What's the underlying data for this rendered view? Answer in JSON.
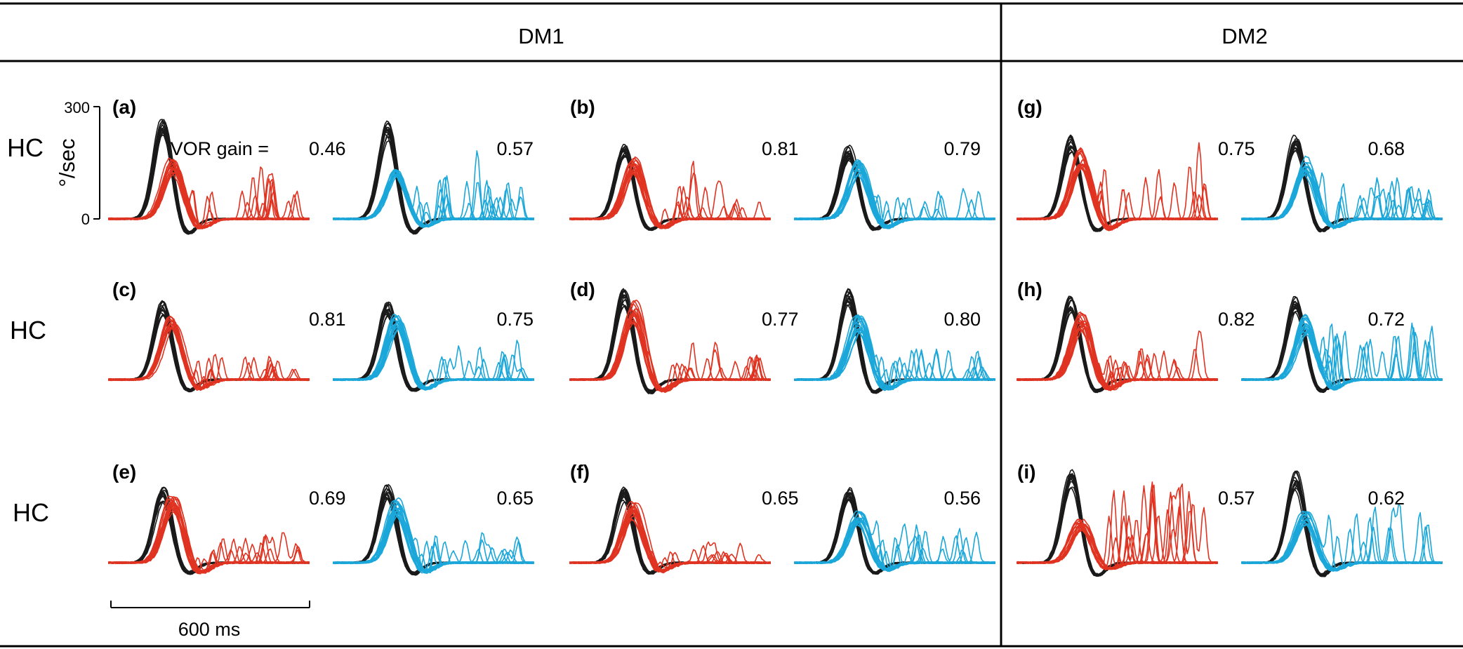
{
  "colors": {
    "healthy_control": "#1a1a1a",
    "red": "#e03321",
    "blue": "#1ba7d9"
  },
  "headers": {
    "dm1": "DM1",
    "dm2": "DM2"
  },
  "row_labels": [
    "HC",
    "HC",
    "HC"
  ],
  "y_axis": {
    "label": "°/sec",
    "top_tick": "300",
    "bottom_tick": "0",
    "ylim": [
      0,
      300
    ]
  },
  "gain_prefix": "VOR gain =",
  "scale_bar": {
    "label": "600 ms",
    "duration_ms": 600
  },
  "chart_data": {
    "type": "line",
    "x_unit": "ms",
    "y_unit": "°/sec",
    "panels": [
      {
        "label": "(a)",
        "group": "DM1",
        "row": 0,
        "col": 0,
        "red": {
          "gain": "0.46",
          "peak": 160,
          "saccades": 12,
          "sacc_amp": 120
        },
        "blue": {
          "gain": "0.57",
          "peak": 145,
          "saccades": 12,
          "sacc_amp": 125
        },
        "hc_peak": 270
      },
      {
        "label": "(b)",
        "group": "DM1",
        "row": 0,
        "col": 1,
        "red": {
          "gain": "0.81",
          "peak": 165,
          "saccades": 8,
          "sacc_amp": 90
        },
        "blue": {
          "gain": "0.79",
          "peak": 160,
          "saccades": 6,
          "sacc_amp": 80
        },
        "hc_peak": 200
      },
      {
        "label": "(c)",
        "group": "DM1",
        "row": 1,
        "col": 0,
        "red": {
          "gain": "0.81",
          "peak": 175,
          "saccades": 8,
          "sacc_amp": 80
        },
        "blue": {
          "gain": "0.75",
          "peak": 175,
          "saccades": 9,
          "sacc_amp": 90
        },
        "hc_peak": 215
      },
      {
        "label": "(d)",
        "group": "DM1",
        "row": 1,
        "col": 1,
        "red": {
          "gain": "0.77",
          "peak": 210,
          "saccades": 8,
          "sacc_amp": 75
        },
        "blue": {
          "gain": "0.80",
          "peak": 175,
          "saccades": 8,
          "sacc_amp": 85
        },
        "hc_peak": 245
      },
      {
        "label": "(e)",
        "group": "DM1",
        "row": 2,
        "col": 0,
        "red": {
          "gain": "0.69",
          "peak": 180,
          "saccades": 12,
          "sacc_amp": 80
        },
        "blue": {
          "gain": "0.65",
          "peak": 170,
          "saccades": 12,
          "sacc_amp": 95
        },
        "hc_peak": 210
      },
      {
        "label": "(f)",
        "group": "DM1",
        "row": 2,
        "col": 1,
        "red": {
          "gain": "0.65",
          "peak": 160,
          "saccades": 6,
          "sacc_amp": 55
        },
        "blue": {
          "gain": "0.56",
          "peak": 140,
          "saccades": 9,
          "sacc_amp": 100
        },
        "hc_peak": 205
      },
      {
        "label": "(g)",
        "group": "DM2",
        "row": 0,
        "col": 2,
        "red": {
          "gain": "0.75",
          "peak": 190,
          "saccades": 10,
          "sacc_amp": 150
        },
        "blue": {
          "gain": "0.68",
          "peak": 165,
          "saccades": 8,
          "sacc_amp": 110
        },
        "hc_peak": 230
      },
      {
        "label": "(h)",
        "group": "DM2",
        "row": 1,
        "col": 2,
        "red": {
          "gain": "0.82",
          "peak": 180,
          "saccades": 10,
          "sacc_amp": 95
        },
        "blue": {
          "gain": "0.72",
          "peak": 175,
          "saccades": 14,
          "sacc_amp": 150
        },
        "hc_peak": 230
      },
      {
        "label": "(i)",
        "group": "DM2",
        "row": 2,
        "col": 2,
        "red": {
          "gain": "0.57",
          "peak": 115,
          "saccades": 10,
          "sacc_amp": 220
        },
        "blue": {
          "gain": "0.62",
          "peak": 135,
          "saccades": 12,
          "sacc_amp": 160
        },
        "hc_peak": 250
      }
    ]
  }
}
